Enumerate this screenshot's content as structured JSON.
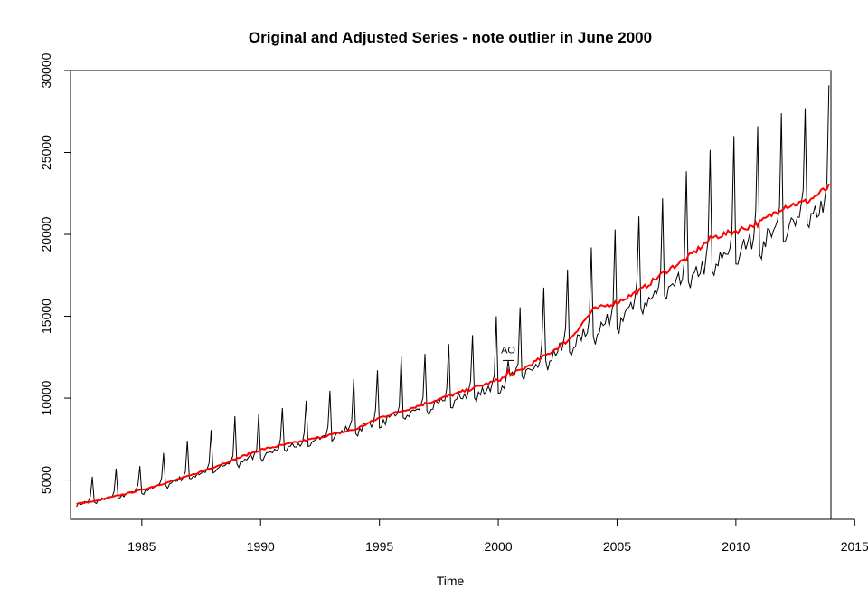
{
  "chart_data": {
    "type": "line",
    "title": "Original and Adjusted Series - note outlier in June 2000",
    "xlabel": "Time",
    "ylabel": "",
    "xlim": [
      1982,
      2014
    ],
    "ylim": [
      2600,
      30000
    ],
    "x_ticks": [
      1985,
      1990,
      1995,
      2000,
      2005,
      2010,
      2015
    ],
    "y_ticks": [
      5000,
      10000,
      15000,
      20000,
      25000,
      30000
    ],
    "grid": false,
    "legend": "none",
    "start": 1982.25,
    "end": 2013.917,
    "series": [
      {
        "color": "#000000",
        "trend_knots": [
          [
            1982.25,
            3550
          ],
          [
            1985,
            4400
          ],
          [
            1990,
            6650
          ],
          [
            1995,
            8700
          ],
          [
            2000,
            10900
          ],
          [
            2005,
            15200
          ],
          [
            2010,
            19300
          ],
          [
            2013.917,
            22200
          ]
        ],
        "seasonal": [
          -0.045,
          -0.065,
          -0.025,
          -0.03,
          -0.005,
          -0.02,
          -0.015,
          0.0,
          -0.02,
          0.005,
          0.06,
          0.3
        ],
        "december_peaks": [
          [
            1982.917,
            5200
          ],
          [
            1983.917,
            5700
          ],
          [
            1984.917,
            5850
          ],
          [
            1985.917,
            6650
          ],
          [
            1986.917,
            7400
          ],
          [
            1987.917,
            8050
          ],
          [
            1988.917,
            8900
          ],
          [
            1989.917,
            9000
          ],
          [
            1990.917,
            9400
          ],
          [
            1991.917,
            9850
          ],
          [
            1992.917,
            10450
          ],
          [
            1993.917,
            11150
          ],
          [
            1994.917,
            11700
          ],
          [
            1995.917,
            12550
          ],
          [
            1996.917,
            12700
          ],
          [
            1997.917,
            13300
          ],
          [
            1998.917,
            13850
          ],
          [
            1999.917,
            15000
          ],
          [
            2000.917,
            15550
          ],
          [
            2001.917,
            16750
          ],
          [
            2002.917,
            17850
          ],
          [
            2003.917,
            19200
          ],
          [
            2004.917,
            20300
          ],
          [
            2005.917,
            21100
          ],
          [
            2006.917,
            22200
          ],
          [
            2007.917,
            23850
          ],
          [
            2008.917,
            25150
          ],
          [
            2009.917,
            26000
          ],
          [
            2010.917,
            26600
          ],
          [
            2011.917,
            27400
          ],
          [
            2012.917,
            27700
          ],
          [
            2013.917,
            29100
          ]
        ],
        "outlier": {
          "x": 2000.417,
          "y": 12300
        }
      },
      {
        "color": "#ff0000",
        "knots": [
          [
            1982.25,
            3550
          ],
          [
            1983,
            3700
          ],
          [
            1985,
            4400
          ],
          [
            1987,
            5250
          ],
          [
            1990,
            6850
          ],
          [
            1992,
            7450
          ],
          [
            1994,
            8100
          ],
          [
            1995,
            8800
          ],
          [
            1997,
            9700
          ],
          [
            2000,
            11100
          ],
          [
            2001,
            11750
          ],
          [
            2002,
            12600
          ],
          [
            2003,
            13600
          ],
          [
            2004,
            15400
          ],
          [
            2005,
            15850
          ],
          [
            2006,
            16600
          ],
          [
            2007,
            17700
          ],
          [
            2008,
            18600
          ],
          [
            2009,
            19800
          ],
          [
            2010,
            20200
          ],
          [
            2011,
            20700
          ],
          [
            2012,
            21700
          ],
          [
            2013,
            22000
          ],
          [
            2013.917,
            22900
          ]
        ],
        "outlier": {
          "x": 2000.417,
          "y": 11700
        }
      }
    ],
    "annotations": [
      {
        "text": "AO",
        "x": 2000.417,
        "y": 12300
      }
    ]
  }
}
